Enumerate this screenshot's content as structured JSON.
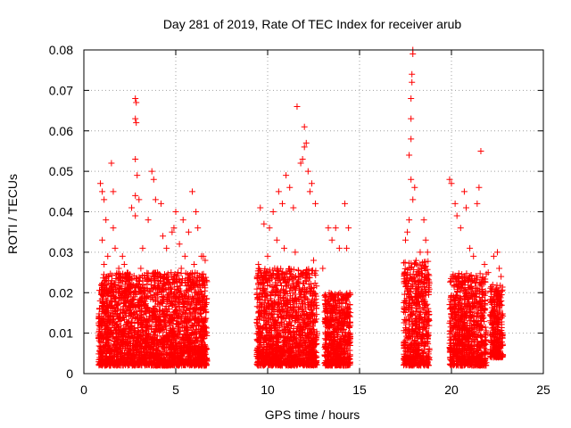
{
  "chart_data": {
    "type": "scatter",
    "title": "Day 281 of 2019, Rate Of TEC Index for receiver arub",
    "xlabel": "GPS time / hours",
    "ylabel": "ROTI / TECUs",
    "xlim": [
      0,
      25
    ],
    "ylim": [
      0,
      0.08
    ],
    "x_ticks": [
      0,
      5,
      10,
      15,
      20,
      25
    ],
    "x_tick_labels": [
      "0",
      "5",
      "10",
      "15",
      "20",
      "25"
    ],
    "y_ticks": [
      0,
      0.01,
      0.02,
      0.03,
      0.04,
      0.05,
      0.06,
      0.07,
      0.08
    ],
    "y_tick_labels": [
      "0",
      "0.01",
      "0.02",
      "0.03",
      "0.04",
      "0.05",
      "0.06",
      "0.07",
      "0.08"
    ],
    "grid": true,
    "marker": "+",
    "marker_color": "#ff0000",
    "series": [
      {
        "name": "ROTI",
        "points": [
          [
            0.9,
            0.047
          ],
          [
            1.0,
            0.045
          ],
          [
            1.1,
            0.043
          ],
          [
            1.2,
            0.038
          ],
          [
            1.0,
            0.033
          ],
          [
            1.3,
            0.029
          ],
          [
            1.1,
            0.027
          ],
          [
            1.2,
            0.022
          ],
          [
            1.4,
            0.021
          ],
          [
            1.05,
            0.019
          ],
          [
            1.2,
            0.016
          ],
          [
            1.35,
            0.014
          ],
          [
            1.0,
            0.012
          ],
          [
            1.25,
            0.011
          ],
          [
            1.5,
            0.052
          ],
          [
            1.6,
            0.045
          ],
          [
            1.6,
            0.036
          ],
          [
            1.7,
            0.031
          ],
          [
            1.9,
            0.026
          ],
          [
            2.1,
            0.029
          ],
          [
            2.3,
            0.024
          ],
          [
            2.6,
            0.041
          ],
          [
            2.8,
            0.044
          ],
          [
            2.8,
            0.039
          ],
          [
            2.8,
            0.068
          ],
          [
            2.85,
            0.067
          ],
          [
            2.8,
            0.063
          ],
          [
            2.85,
            0.062
          ],
          [
            2.8,
            0.053
          ],
          [
            2.9,
            0.049
          ],
          [
            3.0,
            0.043
          ],
          [
            3.2,
            0.031
          ],
          [
            3.5,
            0.038
          ],
          [
            3.7,
            0.05
          ],
          [
            3.8,
            0.048
          ],
          [
            3.9,
            0.043
          ],
          [
            4.2,
            0.042
          ],
          [
            4.3,
            0.034
          ],
          [
            4.5,
            0.031
          ],
          [
            4.8,
            0.035
          ],
          [
            4.9,
            0.036
          ],
          [
            5.0,
            0.04
          ],
          [
            5.2,
            0.032
          ],
          [
            5.4,
            0.038
          ],
          [
            5.5,
            0.029
          ],
          [
            5.7,
            0.035
          ],
          [
            5.9,
            0.045
          ],
          [
            6.1,
            0.04
          ],
          [
            6.2,
            0.036
          ],
          [
            6.4,
            0.029
          ],
          [
            6.5,
            0.029
          ],
          [
            6.6,
            0.028
          ],
          [
            2.2,
            0.027
          ],
          [
            3.1,
            0.026
          ],
          [
            4.0,
            0.025
          ],
          [
            5.3,
            0.026
          ],
          [
            6.0,
            0.027
          ],
          [
            9.6,
            0.041
          ],
          [
            9.8,
            0.037
          ],
          [
            10.1,
            0.036
          ],
          [
            10.3,
            0.04
          ],
          [
            10.5,
            0.033
          ],
          [
            10.6,
            0.045
          ],
          [
            10.8,
            0.042
          ],
          [
            11.0,
            0.049
          ],
          [
            11.2,
            0.046
          ],
          [
            11.4,
            0.041
          ],
          [
            11.6,
            0.066
          ],
          [
            11.8,
            0.052
          ],
          [
            11.9,
            0.053
          ],
          [
            12.0,
            0.056
          ],
          [
            12.0,
            0.061
          ],
          [
            12.1,
            0.057
          ],
          [
            12.2,
            0.05
          ],
          [
            12.3,
            0.045
          ],
          [
            12.4,
            0.047
          ],
          [
            12.6,
            0.042
          ],
          [
            13.3,
            0.036
          ],
          [
            13.5,
            0.033
          ],
          [
            13.7,
            0.036
          ],
          [
            13.9,
            0.031
          ],
          [
            14.2,
            0.042
          ],
          [
            14.3,
            0.031
          ],
          [
            14.4,
            0.036
          ],
          [
            9.5,
            0.027
          ],
          [
            10.0,
            0.029
          ],
          [
            10.9,
            0.031
          ],
          [
            11.5,
            0.03
          ],
          [
            12.5,
            0.028
          ],
          [
            13.0,
            0.026
          ],
          [
            17.5,
            0.033
          ],
          [
            17.6,
            0.035
          ],
          [
            17.7,
            0.038
          ],
          [
            17.7,
            0.054
          ],
          [
            17.8,
            0.063
          ],
          [
            17.8,
            0.058
          ],
          [
            17.8,
            0.068
          ],
          [
            17.85,
            0.072
          ],
          [
            17.85,
            0.074
          ],
          [
            17.9,
            0.079
          ],
          [
            17.9,
            0.08
          ],
          [
            17.8,
            0.048
          ],
          [
            18.0,
            0.046
          ],
          [
            17.9,
            0.043
          ],
          [
            18.3,
            0.03
          ],
          [
            18.5,
            0.038
          ],
          [
            18.6,
            0.033
          ],
          [
            18.7,
            0.03
          ],
          [
            19.9,
            0.048
          ],
          [
            20.0,
            0.047
          ],
          [
            20.2,
            0.042
          ],
          [
            20.3,
            0.039
          ],
          [
            20.5,
            0.036
          ],
          [
            20.7,
            0.045
          ],
          [
            20.8,
            0.041
          ],
          [
            21.0,
            0.031
          ],
          [
            21.2,
            0.029
          ],
          [
            21.4,
            0.042
          ],
          [
            21.5,
            0.046
          ],
          [
            21.6,
            0.055
          ],
          [
            21.8,
            0.027
          ],
          [
            22.0,
            0.025
          ],
          [
            22.3,
            0.029
          ],
          [
            22.5,
            0.03
          ],
          [
            22.6,
            0.026
          ],
          [
            22.7,
            0.024
          ]
        ]
      }
    ],
    "dense_bands": [
      {
        "x_start": 0.8,
        "x_end": 6.7,
        "y_min": 0.002,
        "y_max": 0.025
      },
      {
        "x_start": 9.4,
        "x_end": 12.7,
        "y_min": 0.002,
        "y_max": 0.026
      },
      {
        "x_start": 13.1,
        "x_end": 14.5,
        "y_min": 0.002,
        "y_max": 0.02
      },
      {
        "x_start": 17.4,
        "x_end": 18.8,
        "y_min": 0.002,
        "y_max": 0.028
      },
      {
        "x_start": 19.9,
        "x_end": 21.9,
        "y_min": 0.002,
        "y_max": 0.025
      },
      {
        "x_start": 22.1,
        "x_end": 22.8,
        "y_min": 0.004,
        "y_max": 0.022
      }
    ]
  }
}
